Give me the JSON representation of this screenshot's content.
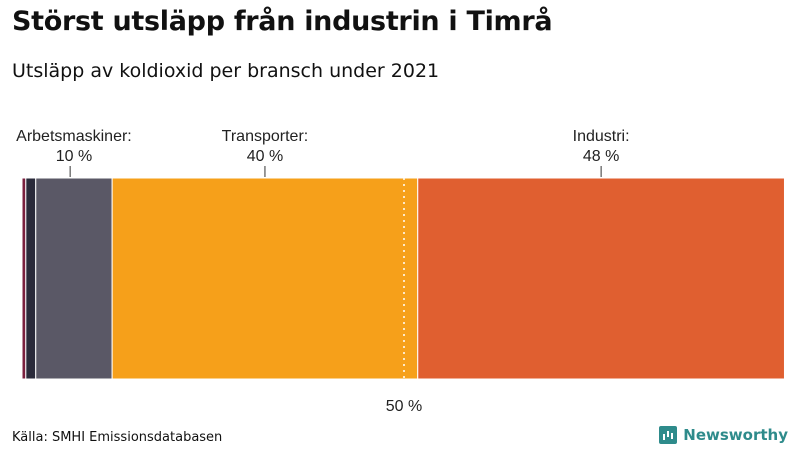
{
  "header": {
    "title": "Störst utsläpp från industrin i Timrå",
    "subtitle": "Utsläpp av koldioxid per bransch under 2021"
  },
  "footer": {
    "source": "Källa: SMHI Emissionsdatabasen",
    "brand": "Newsworthy"
  },
  "colors": {
    "tiny1": "#7a1f3d",
    "tiny2": "#2a2a3a",
    "arbetsmaskiner": "#5a5866",
    "transporter": "#f6a01a",
    "industri": "#e05f30",
    "brand": "#2e8b8b"
  },
  "chart_data": {
    "type": "bar",
    "orientation": "stacked-horizontal-100",
    "unit": "%",
    "segments": [
      {
        "category": "",
        "value": 0.5,
        "label": "",
        "value_label": "",
        "color": "#7a1f3d"
      },
      {
        "category": "",
        "value": 1.3,
        "label": "",
        "value_label": "",
        "color": "#2a2a3a"
      },
      {
        "category": "Arbetsmaskiner",
        "value": 10,
        "label": "Arbetsmaskiner:",
        "value_label": "10 %",
        "color": "#5a5866"
      },
      {
        "category": "Transporter",
        "value": 40,
        "label": "Transporter:",
        "value_label": "40 %",
        "color": "#f6a01a"
      },
      {
        "category": "Industri",
        "value": 48,
        "label": "Industri:",
        "value_label": "48 %",
        "color": "#e05f30"
      }
    ],
    "reference_line": {
      "value": 50,
      "label": "50 %"
    },
    "total": 100
  }
}
